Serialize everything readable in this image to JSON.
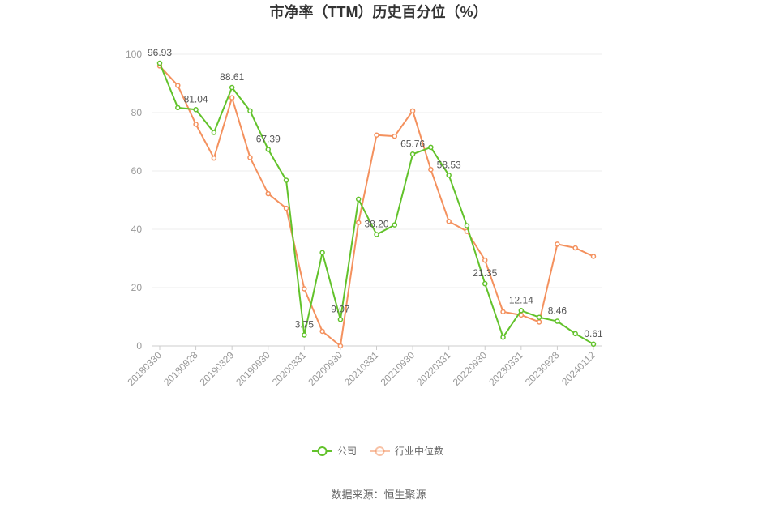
{
  "chart_data": {
    "type": "line",
    "title": "市净率（TTM）历史百分位（%）",
    "source": "数据来源：恒生聚源",
    "ylim": [
      0,
      100
    ],
    "yticks": [
      0,
      20,
      40,
      60,
      80,
      100
    ],
    "grid": true,
    "legend_position": "bottom",
    "x_tick_labels": [
      "20180330",
      "20180928",
      "20190329",
      "20190930",
      "20200331",
      "20200930",
      "20210331",
      "20210930",
      "20220331",
      "20220930",
      "20230331",
      "20230928",
      "20240112"
    ],
    "series": [
      {
        "name": "公司",
        "color": "#62c22b",
        "values": [
          96.93,
          81.7,
          81.04,
          73.2,
          88.61,
          80.6,
          67.39,
          56.8,
          3.75,
          32.0,
          9.07,
          50.3,
          38.2,
          41.5,
          65.76,
          68.1,
          58.53,
          41.2,
          21.35,
          3.0,
          12.14,
          9.8,
          8.46,
          4.2,
          0.61
        ]
      },
      {
        "name": "行业中位数",
        "color": "#f4915e",
        "values": [
          96.0,
          89.3,
          76.0,
          64.4,
          85.1,
          64.6,
          52.2,
          47.2,
          19.6,
          5.0,
          0.0,
          42.3,
          72.3,
          71.9,
          80.6,
          60.5,
          42.7,
          39.3,
          29.4,
          11.7,
          10.6,
          8.2,
          34.9,
          33.6,
          30.7
        ]
      }
    ],
    "data_labels": [
      {
        "index": 0,
        "text": "96.93"
      },
      {
        "index": 2,
        "text": "81.04"
      },
      {
        "index": 4,
        "text": "88.61"
      },
      {
        "index": 6,
        "text": "67.39"
      },
      {
        "index": 8,
        "text": "3.75"
      },
      {
        "index": 10,
        "text": "9.07"
      },
      {
        "index": 12,
        "text": "38.20"
      },
      {
        "index": 14,
        "text": "65.76"
      },
      {
        "index": 16,
        "text": "58.53"
      },
      {
        "index": 18,
        "text": "21.35"
      },
      {
        "index": 20,
        "text": "12.14"
      },
      {
        "index": 22,
        "text": "8.46"
      },
      {
        "index": 24,
        "text": "0.61"
      }
    ]
  }
}
